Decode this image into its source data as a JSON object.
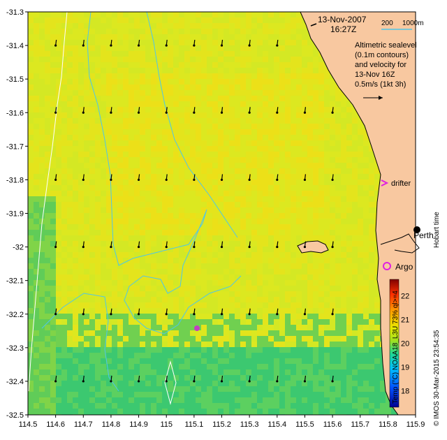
{
  "date_label": "13-Nov-2007",
  "time_label": "16:27Z",
  "scale": {
    "short": "200",
    "long": "1000m"
  },
  "altimetry_note": [
    "Altimetric sealevel",
    "(0.1m contours)",
    "and velocity for",
    "13-Nov 16Z",
    "0.5m/s (1kt 3h)"
  ],
  "markers": {
    "drifter": "drifter",
    "argo": "Argo",
    "perth": "Perth"
  },
  "side_label": "Hobart time",
  "credit": "© IMOS 30-Mar-2015 23:54:35",
  "colorbar": {
    "title": "Temp (°C) NOAA18_L3U 73% ql>=4",
    "ticks": [
      "18",
      "19",
      "20",
      "21",
      "22"
    ],
    "range": [
      17.3,
      22.7
    ]
  },
  "colors": {
    "land": "#f8c8a0",
    "coastline": "#000000",
    "isobath": "#ffffff",
    "contour": "#4fc6e8",
    "drifter": "#e020e0",
    "argo": "#e020e0",
    "ocean_base": "#cde82e"
  },
  "chart_data": {
    "type": "heatmap",
    "xlim": [
      114.5,
      115.9
    ],
    "ylim": [
      -32.5,
      -31.3
    ],
    "x_ticks": [
      "114.5",
      "114.6",
      "114.7",
      "114.8",
      "114.9",
      "115",
      "115.1",
      "115.2",
      "115.3",
      "115.4",
      "115.5",
      "115.6",
      "115.7",
      "115.8",
      "115.9"
    ],
    "y_ticks": [
      "-31.3",
      "-31.4",
      "-31.5",
      "-31.6",
      "-31.7",
      "-31.8",
      "-31.9",
      "-32",
      "-32.1",
      "-32.2",
      "-32.3",
      "-32.4",
      "-32.5"
    ],
    "x_tick_values": [
      114.5,
      114.6,
      114.7,
      114.8,
      114.9,
      115.0,
      115.1,
      115.2,
      115.3,
      115.4,
      115.5,
      115.6,
      115.7,
      115.8,
      115.9
    ],
    "y_tick_values": [
      -31.3,
      -31.4,
      -31.5,
      -31.6,
      -31.7,
      -31.8,
      -31.9,
      -32.0,
      -32.1,
      -32.2,
      -32.3,
      -32.4,
      -32.5
    ],
    "drifter_position": [
      115.775,
      -31.81
    ],
    "argo_position": [
      115.735,
      -32.08
    ],
    "perth_position": [
      115.86,
      -31.95
    ],
    "temperature_note": "SST mostly ~20–21 °C offshore, cooler (~19 °C) along the southern and western edges"
  }
}
